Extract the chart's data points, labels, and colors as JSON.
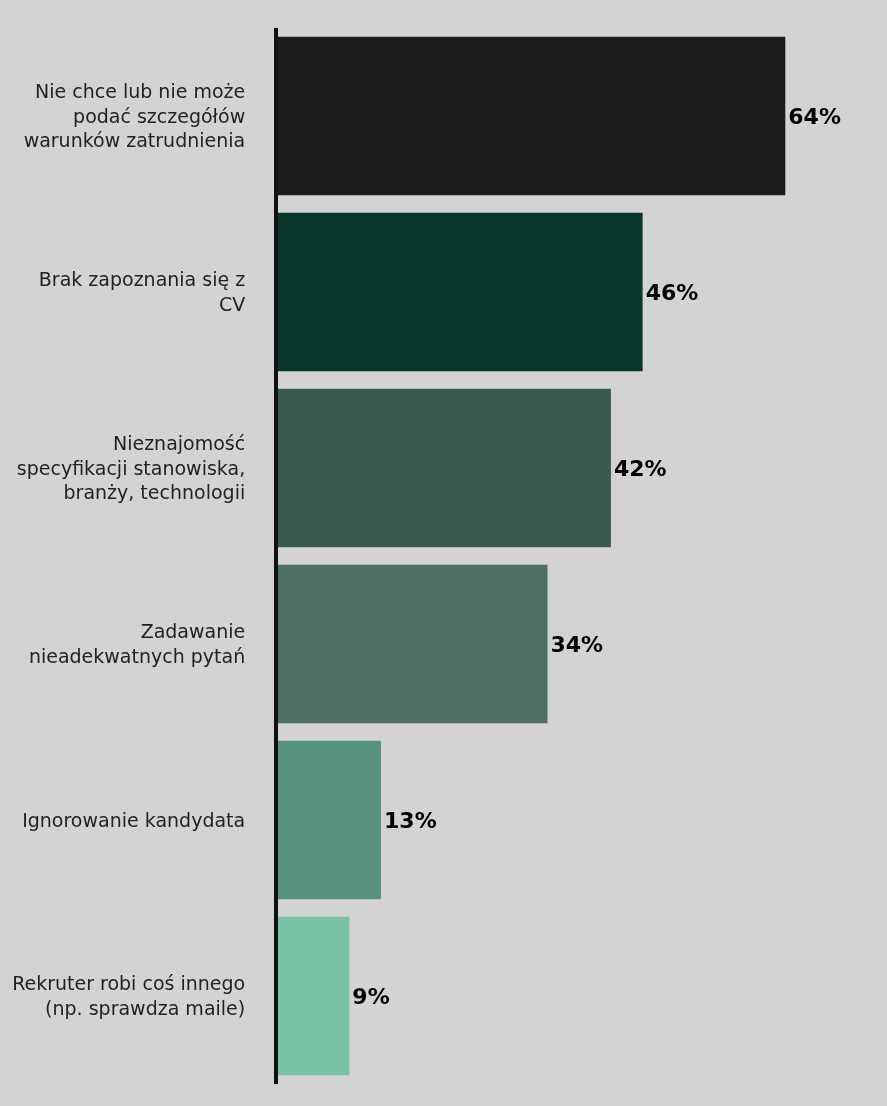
{
  "chart_data": {
    "type": "bar",
    "orientation": "horizontal",
    "categories": [
      "Nie chce lub nie może\npodać szczegółów\nwarunków zatrudnienia",
      "Brak zapoznania się z\nCV",
      "Nieznajomość\nspecyfikacji stanowiska,\nbranży, technologii",
      "Zadawanie\nnieadekwatnych pytań",
      "Ignorowanie kandydata",
      "Rekruter robi coś innego\n(np. sprawdza maile)"
    ],
    "values": [
      64,
      46,
      42,
      34,
      13,
      9
    ],
    "value_labels": [
      "64%",
      "46%",
      "42%",
      "34%",
      "13%",
      "9%"
    ],
    "colors": [
      "#1c1c1c",
      "#08372b",
      "#3a5a4f",
      "#4f7165",
      "#56927c",
      "#78c2a5"
    ]
  }
}
